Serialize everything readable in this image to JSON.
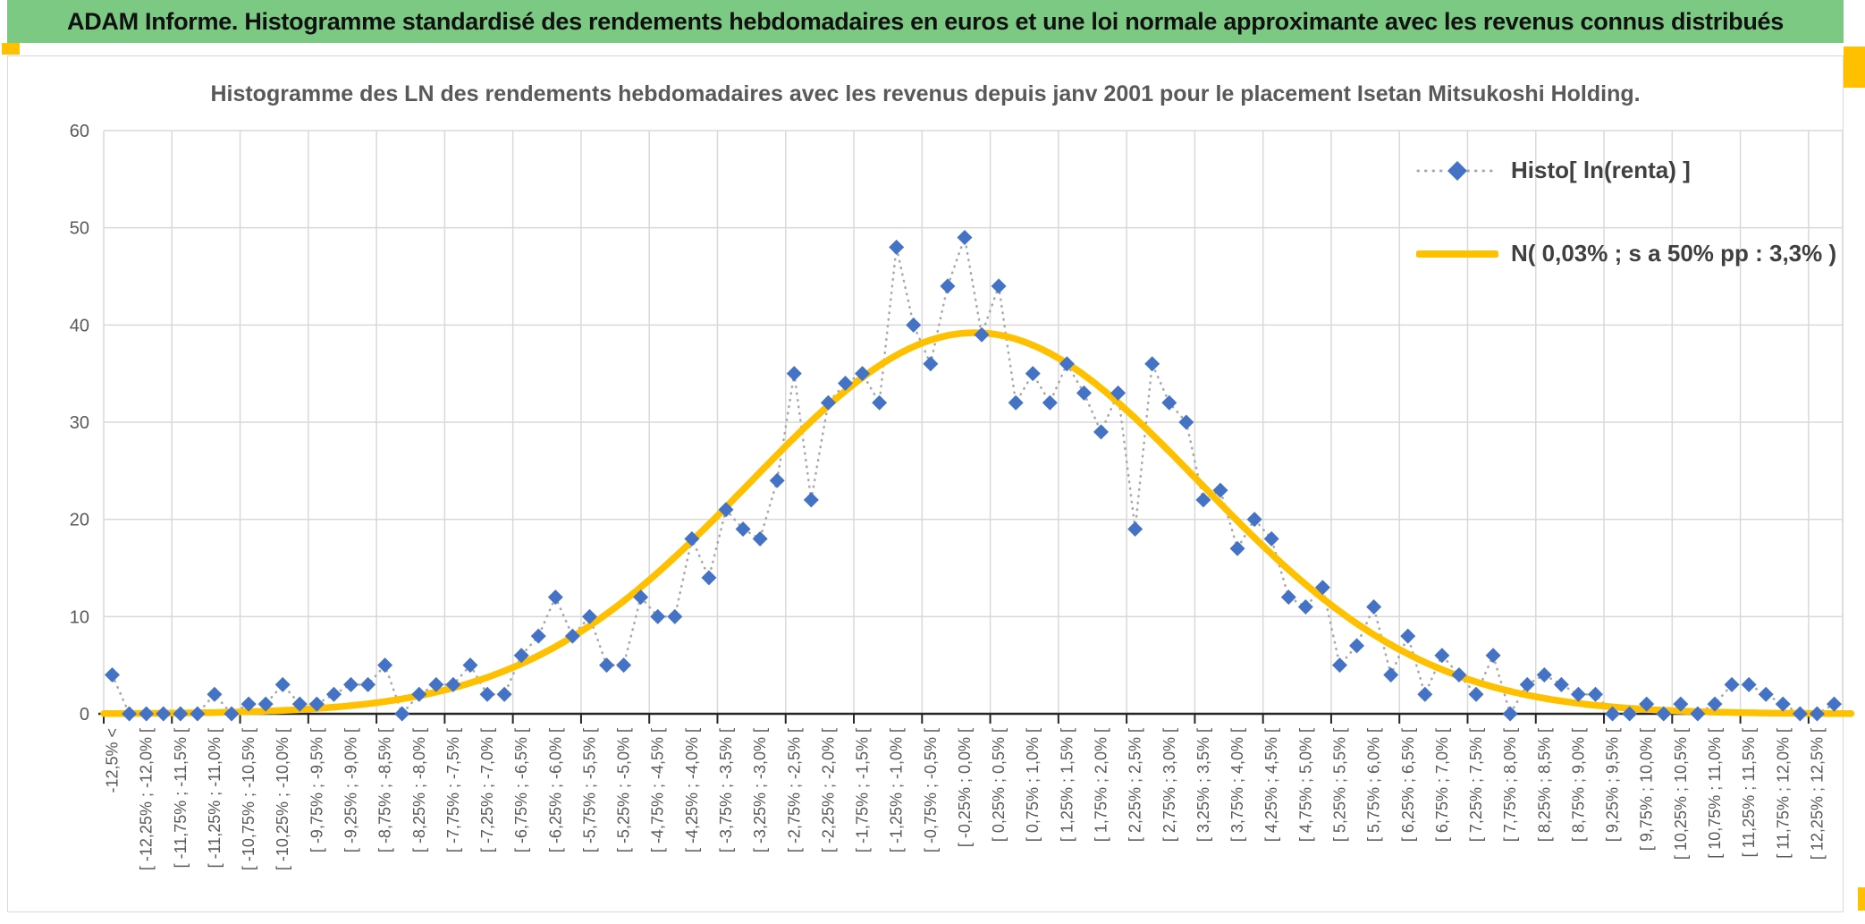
{
  "banner": {
    "title": "ADAM Informe. Histogramme standardisé des rendements hebdomadaires en euros et une loi normale approximante avec les revenus connus distribués"
  },
  "colors": {
    "banner_green": "#7CC983",
    "accent_gold": "#FFC000",
    "marker_blue": "#4472C4",
    "dotted_line_gray": "#A8A8A8",
    "grid_gray": "#D9D9D9",
    "axis_black": "#262626",
    "text_gray": "#595959",
    "legend_text": "#404040"
  },
  "chart_data": {
    "type": "line",
    "title": "Histogramme des LN des rendements hebdomadaires avec les revenus depuis janv 2001 pour le placement Isetan Mitsukoshi Holding.",
    "ylim": [
      0,
      60
    ],
    "yticks": [
      0,
      10,
      20,
      30,
      40,
      50,
      60
    ],
    "grid": true,
    "legend_position": "inside-top-right",
    "x_bin_width_pct": 0.25,
    "x_label_shown_every": 2,
    "x_visible_labels": [
      "-12,5% <",
      "[ -12,25% ; -12,0% [",
      "[ -11,75% ; -11,5% [",
      "[ -11,25% ; -11,0% [",
      "[ -10,75% ; -10,5% [",
      "[ -10,25% ; -10,0% [",
      "[ -9,75% ; -9,5% [",
      "[ -9,25% ; -9,0% [",
      "[ -8,75% ; -8,5% [",
      "[ -8,25% ; -8,0% [",
      "[ -7,75% ; -7,5% [",
      "[ -7,25% ; -7,0% [",
      "[ -6,75% ; -6,5% [",
      "[ -6,25% ; -6,0% [",
      "[ -5,75% ; -5,5% [",
      "[ -5,25% ; -5,0% [",
      "[ -4,75% ; -4,5% [",
      "[ -4,25% ; -4,0% [",
      "[ -3,75% ; -3,5% [",
      "[ -3,25% ; -3,0% [",
      "[ -2,75% ; -2,5% [",
      "[ -2,25% ; -2,0% [",
      "[ -1,75% ; -1,5% [",
      "[ -1,25% ; -1,0% [",
      "[ -0,75% ; -0,5% [",
      "[ -0,25% ; 0,0% [",
      "[ 0,25% ; 0,5% [",
      "[ 0,75% ; 1,0% [",
      "[ 1,25% ; 1,5% [",
      "[ 1,75% ; 2,0% [",
      "[ 2,25% ; 2,5% [",
      "[ 2,75% ; 3,0% [",
      "[ 3,25% ; 3,5% [",
      "[ 3,75% ; 4,0% [",
      "[ 4,25% ; 4,5% [",
      "[ 4,75% ; 5,0% [",
      "[ 5,25% ; 5,5% [",
      "[ 5,75% ; 6,0% [",
      "[ 6,25% ; 6,5% [",
      "[ 6,75% ; 7,0% [",
      "[ 7,25% ; 7,5% [",
      "[ 7,75% ; 8,0% [",
      "[ 8,25% ; 8,5% [",
      "[ 8,75% ; 9,0% [",
      "[ 9,25% ; 9,5% [",
      "[ 9,75% ; 10,0% [",
      "[ 10,25% ; 10,5% [",
      "[ 10,75% ; 11,0% [",
      "[ 11,25% ; 11,5% [",
      "[ 11,75% ; 12,0% [",
      "[ 12,25% ; 12,5% ["
    ],
    "series": [
      {
        "name": "Histo[ ln(renta) ]",
        "kind": "scatter-with-dotted-line",
        "marker": "diamond",
        "marker_color": "#4472C4",
        "line_color": "#A8A8A8",
        "values": [
          4,
          0,
          0,
          0,
          0,
          0,
          2,
          0,
          1,
          1,
          3,
          1,
          1,
          2,
          3,
          3,
          5,
          0,
          2,
          3,
          3,
          5,
          2,
          2,
          6,
          8,
          12,
          8,
          10,
          5,
          5,
          12,
          10,
          10,
          18,
          14,
          21,
          19,
          18,
          24,
          35,
          22,
          32,
          34,
          35,
          32,
          48,
          40,
          36,
          44,
          49,
          39,
          44,
          32,
          35,
          32,
          36,
          33,
          29,
          33,
          19,
          36,
          32,
          30,
          22,
          23,
          17,
          20,
          18,
          12,
          11,
          13,
          5,
          7,
          11,
          4,
          8,
          2,
          6,
          4,
          2,
          6,
          0,
          3,
          4,
          3,
          2,
          2,
          0,
          0,
          1,
          0,
          1,
          0,
          1,
          3,
          3,
          2,
          1,
          0,
          0,
          1
        ]
      },
      {
        "name": "N( 0,03% ; s a 50% pp : 3,3% )",
        "kind": "gaussian-curve",
        "color": "#FFC000",
        "mean_pct": 0.03,
        "stdev_pct": 3.3,
        "peak_value": 39.2,
        "center_bin_index": 50.6,
        "sigma_in_bins": 13.2
      }
    ]
  }
}
